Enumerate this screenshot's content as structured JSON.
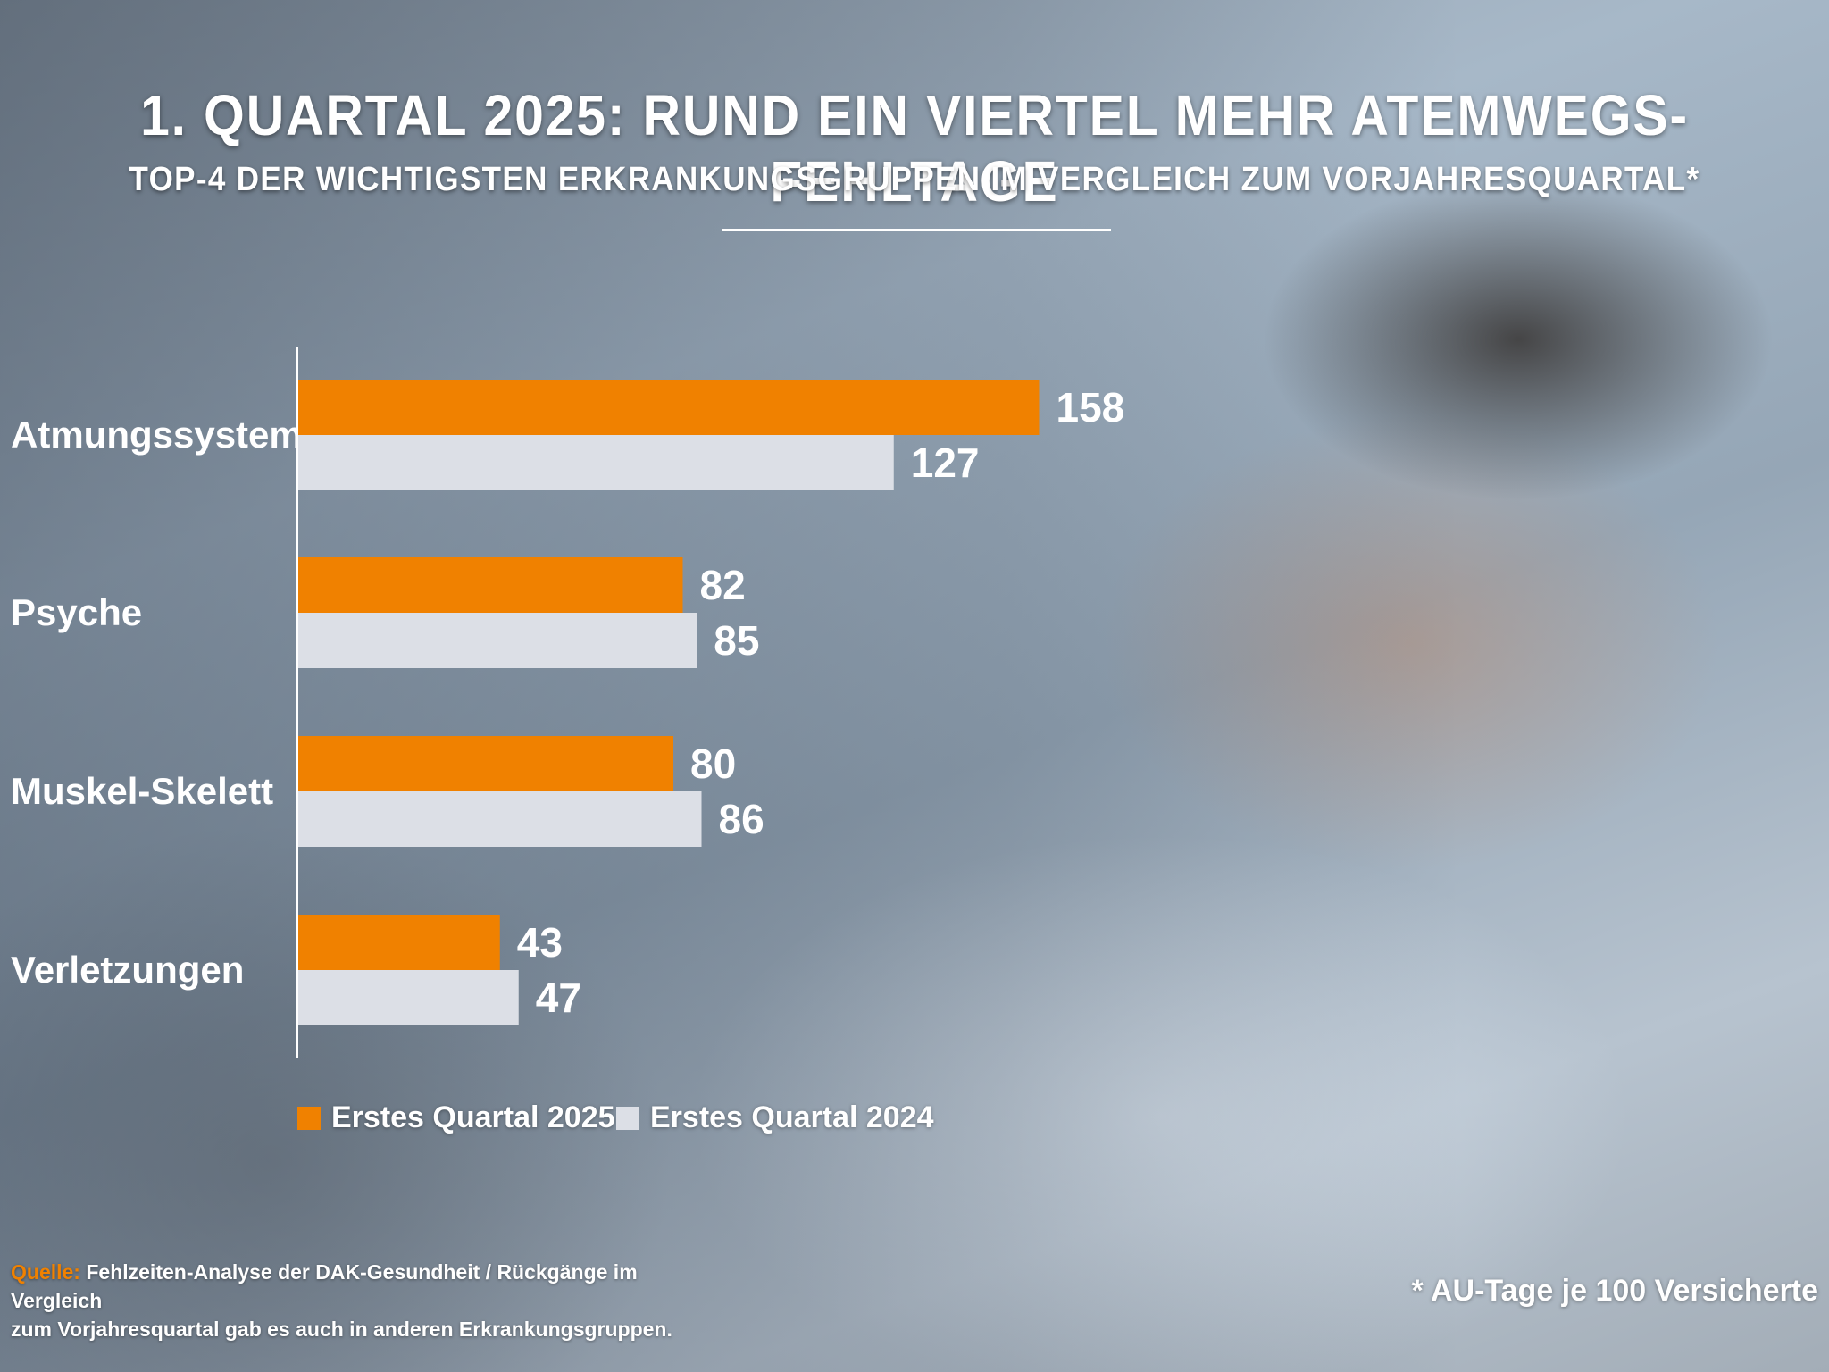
{
  "header": {
    "title": "1. QUARTAL 2025: RUND EIN VIERTEL MEHR ATEMWEGS-FEHLTAGE",
    "subtitle": "TOP-4 DER WICHTIGSTEN ERKRANKUNGSGRUPPEN IM VERGLEICH ZUM VORJAHRESQUARTAL*"
  },
  "chart_data": {
    "type": "bar",
    "orientation": "horizontal",
    "title": "1. QUARTAL 2025: RUND EIN VIERTEL MEHR ATEMWEGS-FEHLTAGE",
    "subtitle": "TOP-4 DER WICHTIGSTEN ERKRANKUNGSGRUPPEN IM VERGLEICH ZUM VORJAHRESQUARTAL*",
    "categories": [
      "Atmungssystem",
      "Psyche",
      "Muskel-Skelett",
      "Verletzungen"
    ],
    "series": [
      {
        "name": "Erstes Quartal 2025",
        "color": "#f08100",
        "values": [
          158,
          82,
          80,
          43
        ]
      },
      {
        "name": "Erstes Quartal 2024",
        "color": "#dcdfe6",
        "values": [
          127,
          85,
          86,
          47
        ]
      }
    ],
    "xlim": [
      0,
      160
    ],
    "grid": false,
    "data_labels": true,
    "legend_position": "bottom-left"
  },
  "legend": {
    "items": [
      {
        "label": "Erstes Quartal 2025",
        "color": "#f08100"
      },
      {
        "label": "Erstes Quartal 2024",
        "color": "#dcdfe6"
      }
    ]
  },
  "source": {
    "label": "Quelle:",
    "line1": " Fehlzeiten-Analyse der DAK-Gesundheit / Rückgänge im Vergleich",
    "line2": "zum Vorjahresquartal gab es auch in anderen Erkrankungsgruppen."
  },
  "footnote": "* AU-Tage je 100 Versicherte"
}
